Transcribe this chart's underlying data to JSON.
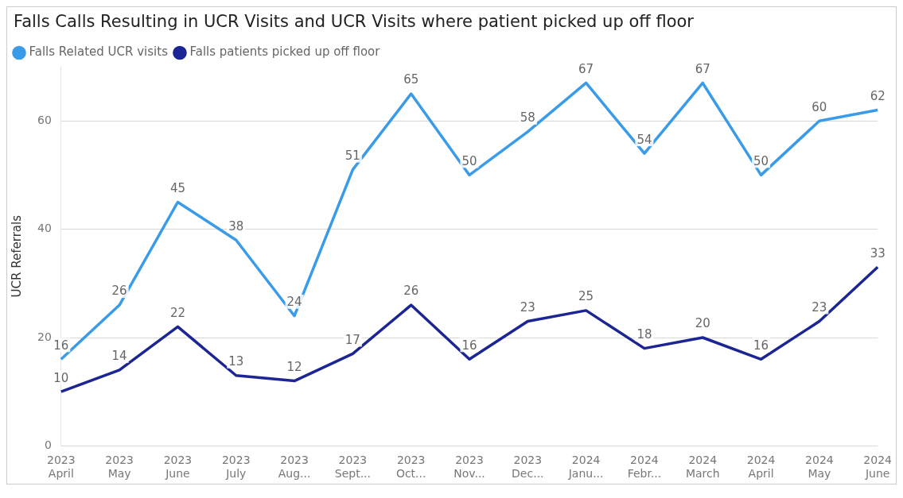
{
  "chart_data": {
    "type": "line",
    "title": "Falls Calls Resulting in UCR Visits and UCR Visits where patient picked up off floor",
    "ylabel": "UCR Referrals",
    "categories": [
      "2023\nApril",
      "2023\nMay",
      "2023\nJune",
      "2023\nJuly",
      "2023\nAug...",
      "2023\nSept...",
      "2023\nOct...",
      "2023\nNov...",
      "2023\nDec...",
      "2024\nJanu...",
      "2024\nFebr...",
      "2024\nMarch",
      "2024\nApril",
      "2024\nMay",
      "2024\nJune"
    ],
    "series": [
      {
        "name": "Falls Related UCR visits",
        "color": "#3a9be8",
        "values": [
          16,
          26,
          45,
          38,
          24,
          51,
          65,
          50,
          58,
          67,
          54,
          67,
          50,
          60,
          62
        ]
      },
      {
        "name": "Falls patients picked up off floor",
        "color": "#1c2594",
        "values": [
          10,
          14,
          22,
          13,
          12,
          17,
          26,
          16,
          23,
          25,
          18,
          20,
          16,
          23,
          33
        ]
      }
    ],
    "ylim": [
      0,
      70
    ],
    "yticks": [
      0,
      20,
      40,
      60
    ],
    "grid": "y",
    "legend": "top left",
    "data_labels": true,
    "marker": "none",
    "line_style": "solid"
  }
}
